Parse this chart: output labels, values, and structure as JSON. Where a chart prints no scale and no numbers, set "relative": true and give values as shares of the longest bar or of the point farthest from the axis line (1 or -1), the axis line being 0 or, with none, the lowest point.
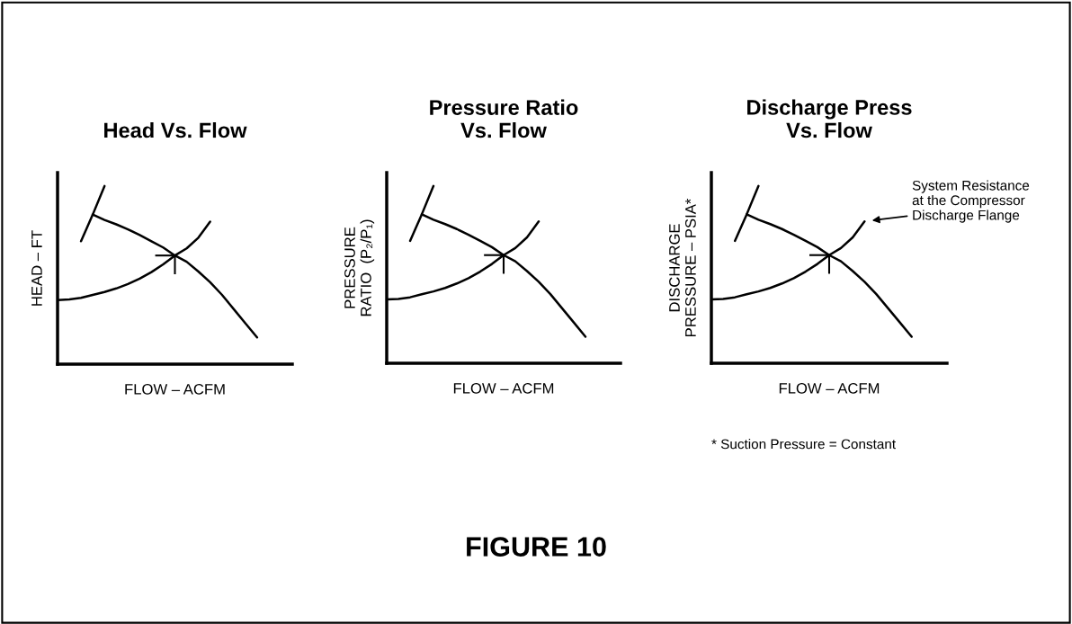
{
  "chart_data": [
    {
      "type": "line",
      "title": "Head Vs. Flow",
      "xlabel": "FLOW – ACFM",
      "ylabel": "HEAD – FT",
      "relative": true,
      "categories": [
        null,
        null,
        null,
        null,
        null,
        null,
        null,
        null,
        null,
        null,
        null,
        null,
        null,
        null,
        null,
        null,
        null,
        null,
        null,
        null,
        null
      ],
      "series": [
        {
          "color": "#000000",
          "values": [
            null,
            null,
            null,
            0.84,
            0.81,
            0.785,
            0.757,
            0.725,
            0.69,
            0.655,
            0.61,
            0.575,
            0.52,
            0.46,
            0.39,
            0.31,
            0.23,
            0.15,
            null,
            null,
            null
          ]
        },
        {
          "color": "#000000",
          "values": [
            null,
            null,
            0.69,
            0.84,
            1.0,
            null,
            null,
            null,
            null,
            null,
            null,
            null,
            null,
            null,
            null,
            null,
            null,
            null,
            null,
            null,
            null
          ]
        },
        {
          "color": "#000000",
          "values": [
            0.36,
            0.363,
            0.372,
            0.389,
            0.405,
            0.425,
            0.45,
            0.48,
            0.517,
            0.56,
            0.61,
            0.65,
            0.71,
            0.8,
            null,
            null,
            null,
            null,
            null,
            null,
            null
          ]
        }
      ]
    },
    {
      "type": "line",
      "title": "Pressure Ratio\nVs. Flow",
      "xlabel": "FLOW – ACFM",
      "ylabel": "PRESSURE\nRATIO  (P₂/P₁)",
      "relative": true,
      "categories": [
        null,
        null,
        null,
        null,
        null,
        null,
        null,
        null,
        null,
        null,
        null,
        null,
        null,
        null,
        null,
        null,
        null,
        null,
        null,
        null,
        null
      ],
      "annotations": [
        "FIGURE 10"
      ],
      "series": [
        {
          "color": "#000000",
          "values": [
            null,
            null,
            null,
            0.84,
            0.81,
            0.785,
            0.757,
            0.725,
            0.69,
            0.655,
            0.61,
            0.575,
            0.52,
            0.46,
            0.39,
            0.31,
            0.23,
            0.15,
            null,
            null,
            null
          ]
        },
        {
          "color": "#000000",
          "values": [
            null,
            null,
            0.69,
            0.84,
            1.0,
            null,
            null,
            null,
            null,
            null,
            null,
            null,
            null,
            null,
            null,
            null,
            null,
            null,
            null,
            null,
            null
          ]
        },
        {
          "color": "#000000",
          "values": [
            0.36,
            0.363,
            0.372,
            0.389,
            0.405,
            0.425,
            0.45,
            0.48,
            0.517,
            0.56,
            0.61,
            0.65,
            0.71,
            0.8,
            null,
            null,
            null,
            null,
            null,
            null,
            null
          ]
        }
      ]
    },
    {
      "type": "line",
      "title": "Discharge Press\nVs. Flow",
      "xlabel": "FLOW – ACFM",
      "ylabel": "DISCHARGE\nPRESSURE – PSIA*",
      "relative": true,
      "categories": [
        null,
        null,
        null,
        null,
        null,
        null,
        null,
        null,
        null,
        null,
        null,
        null,
        null,
        null,
        null,
        null,
        null,
        null,
        null,
        null,
        null
      ],
      "annotations": [
        "System Resistance\nat the Compressor\nDischarge Flange",
        "* Suction Pressure = Constant"
      ],
      "series": [
        {
          "color": "#000000",
          "values": [
            null,
            null,
            null,
            0.84,
            0.81,
            0.785,
            0.757,
            0.725,
            0.69,
            0.655,
            0.61,
            0.575,
            0.52,
            0.46,
            0.39,
            0.31,
            0.23,
            0.15,
            null,
            null,
            null
          ]
        },
        {
          "color": "#000000",
          "values": [
            null,
            null,
            0.69,
            0.84,
            1.0,
            null,
            null,
            null,
            null,
            null,
            null,
            null,
            null,
            null,
            null,
            null,
            null,
            null,
            null,
            null,
            null
          ]
        },
        {
          "color": "#000000",
          "values": [
            0.36,
            0.363,
            0.372,
            0.389,
            0.405,
            0.425,
            0.45,
            0.48,
            0.517,
            0.56,
            0.61,
            0.65,
            0.71,
            0.8,
            null,
            null,
            null,
            null,
            null,
            null,
            null
          ]
        }
      ]
    }
  ]
}
